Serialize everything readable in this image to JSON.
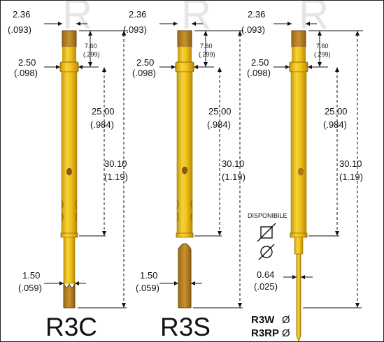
{
  "colors": {
    "probe_gold": "#f2c31a",
    "probe_gold_dark": "#c89a0a",
    "probe_brown": "#b8862a",
    "line": "#111111"
  },
  "watermark_text": "R",
  "probes": [
    {
      "model": "R3C",
      "top_diameter": "2.36",
      "top_diameter_inch": "(.093)",
      "ring_height": "7.60",
      "ring_height_inch": "(.299)",
      "ring_diameter": "2.50",
      "ring_diameter_inch": "(.098)",
      "travel_length": "25.00",
      "travel_length_inch": "(.984)",
      "total_length": "30.10",
      "total_length_inch": "(1.19)",
      "tip_diameter": "1.50",
      "tip_diameter_inch": "(.059)"
    },
    {
      "model": "R3S",
      "top_diameter": "2.36",
      "top_diameter_inch": "(.093)",
      "ring_height": "7.60",
      "ring_height_inch": "(.299)",
      "ring_diameter": "2.50",
      "ring_diameter_inch": "(.098)",
      "travel_length": "25.00",
      "travel_length_inch": "(.984)",
      "total_length": "30.10",
      "total_length_inch": "(1.19)",
      "tip_diameter": "1.50",
      "tip_diameter_inch": "(.059)"
    },
    {
      "model": "R3W",
      "model_alt": "R3RP",
      "top_diameter": "2.36",
      "top_diameter_inch": "(.093)",
      "ring_height": "7.60",
      "ring_height_inch": "(.299)",
      "ring_diameter": "2.50",
      "ring_diameter_inch": "(.098)",
      "travel_length": "25.00",
      "travel_length_inch": "(.984)",
      "total_length": "30.10",
      "total_length_inch": "(1.19)",
      "tip_diameter": "0.64",
      "tip_diameter_inch": "(.025)",
      "availability": "DISPONIBILE",
      "diameter_symbol": "Ø"
    }
  ]
}
